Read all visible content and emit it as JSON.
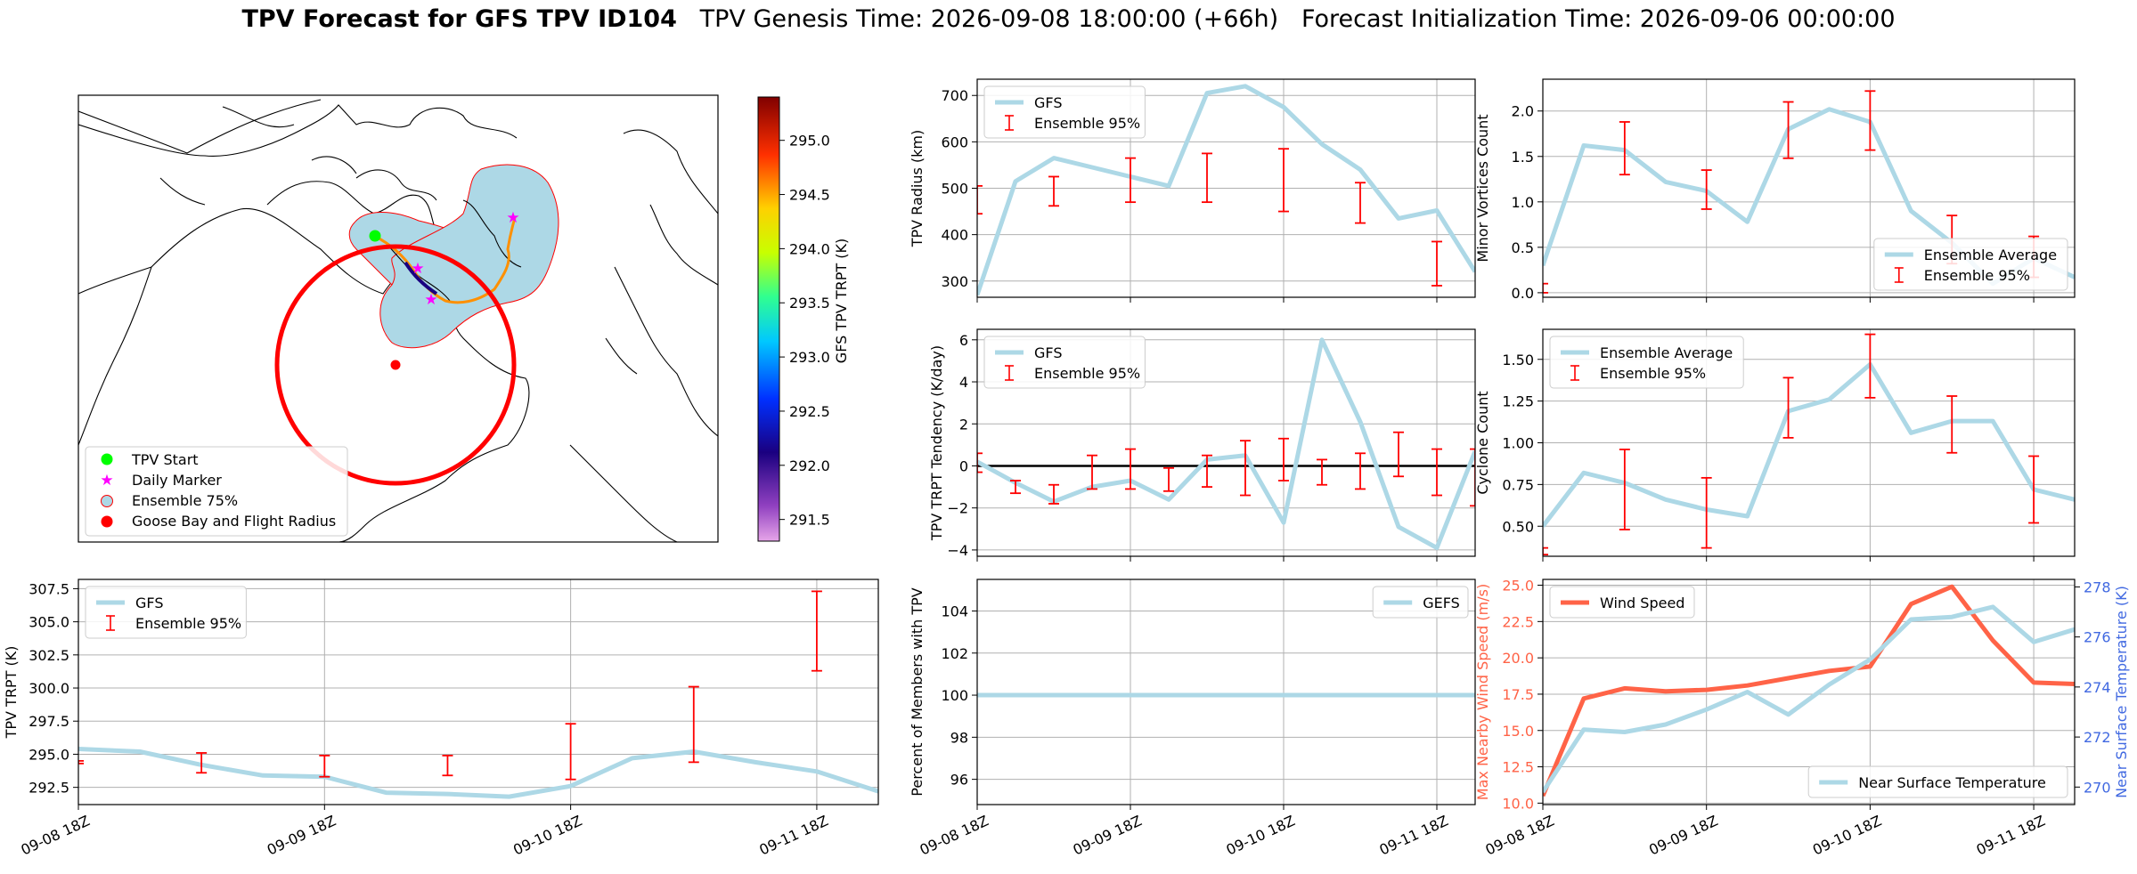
{
  "header": {
    "title_main": "TPV Forecast for GFS TPV ID104",
    "title_genesis": "TPV Genesis Time: 2026-09-08 18:00:00 (+66h)",
    "title_init": "Forecast Initialization Time: 2026-09-06 00:00:00"
  },
  "colors": {
    "gfs_line": "#add8e6",
    "error_bar": "#ff0000",
    "wind_line": "#ff6347",
    "temp_axis": "#4169e1",
    "map_land_edge": "#000000",
    "ensemble_area": "#add8e6",
    "goose_bay": "#ff0000",
    "tpv_start": "#00ff00",
    "daily_marker": "#ff00ff"
  },
  "map_panel": {
    "legend": [
      "TPV Start",
      "Daily Marker",
      "Ensemble 75%",
      "Goose Bay and Flight Radius"
    ],
    "colorbar": {
      "label": "GFS TPV TRPT (K)",
      "ticks": [
        "295.0",
        "294.5",
        "294.0",
        "293.5",
        "293.0",
        "292.5",
        "292.0",
        "291.5"
      ],
      "range": [
        291.3,
        295.4
      ]
    }
  },
  "x_ticks": [
    "09-08 18Z",
    "09-09 18Z",
    "09-10 18Z",
    "09-11 18Z"
  ],
  "chart_data": [
    {
      "id": "radius",
      "type": "line",
      "ylabel": "TPV Radius (km)",
      "ylim": [
        265,
        735
      ],
      "yticks": [
        300,
        400,
        500,
        600,
        700
      ],
      "grid": true,
      "legend": [
        "GFS",
        "Ensemble 95%"
      ],
      "legend_loc": "upper left",
      "x_hours": [
        0,
        6,
        12,
        18,
        24,
        30,
        36,
        42,
        48,
        54,
        60,
        66,
        72,
        78
      ],
      "series": [
        {
          "name": "GFS",
          "values": [
            270,
            515,
            565,
            545,
            525,
            505,
            705,
            720,
            675,
            595,
            540,
            435,
            452,
            320
          ]
        }
      ],
      "errorbars": [
        {
          "x": 0,
          "low": 445,
          "high": 505
        },
        {
          "x": 12,
          "low": 462,
          "high": 525
        },
        {
          "x": 24,
          "low": 470,
          "high": 565
        },
        {
          "x": 36,
          "low": 470,
          "high": 575
        },
        {
          "x": 48,
          "low": 450,
          "high": 585
        },
        {
          "x": 60,
          "low": 425,
          "high": 512
        },
        {
          "x": 72,
          "low": 290,
          "high": 385
        }
      ]
    },
    {
      "id": "minor_vortices",
      "type": "line",
      "ylabel": "Minor Vortices Count",
      "ylim": [
        -0.05,
        2.35
      ],
      "yticks": [
        0.0,
        0.5,
        1.0,
        1.5,
        2.0
      ],
      "ytick_labels": [
        "0.0",
        "0.5",
        "1.0",
        "1.5",
        "2.0"
      ],
      "grid": true,
      "legend": [
        "Ensemble Average",
        "Ensemble 95%"
      ],
      "legend_loc": "lower right",
      "x_hours": [
        0,
        6,
        12,
        18,
        24,
        30,
        36,
        42,
        48,
        54,
        60,
        66,
        72,
        78
      ],
      "series": [
        {
          "name": "Ensemble Average",
          "values": [
            0.3,
            1.62,
            1.57,
            1.22,
            1.12,
            0.78,
            1.8,
            2.02,
            1.88,
            0.9,
            0.55,
            0.1,
            0.38,
            0.17
          ]
        }
      ],
      "errorbars": [
        {
          "x": 0,
          "low": 0.0,
          "high": 0.1
        },
        {
          "x": 12,
          "low": 1.3,
          "high": 1.88
        },
        {
          "x": 24,
          "low": 0.92,
          "high": 1.35
        },
        {
          "x": 36,
          "low": 1.48,
          "high": 2.1
        },
        {
          "x": 48,
          "low": 1.57,
          "high": 2.22
        },
        {
          "x": 60,
          "low": 0.32,
          "high": 0.85
        },
        {
          "x": 72,
          "low": 0.17,
          "high": 0.62
        }
      ]
    },
    {
      "id": "tendency",
      "type": "line",
      "ylabel": "TPV TRPT Tendency (K/day)",
      "ylim": [
        -4.3,
        6.5
      ],
      "yticks": [
        -4,
        -2,
        0,
        2,
        4,
        6
      ],
      "ytick_labels": [
        "−4",
        "−2",
        "0",
        "2",
        "4",
        "6"
      ],
      "grid": true,
      "zero_line": true,
      "legend": [
        "GFS",
        "Ensemble 95%"
      ],
      "legend_loc": "upper left",
      "x_hours": [
        0,
        6,
        12,
        18,
        24,
        30,
        36,
        42,
        48,
        54,
        60,
        66,
        72,
        78
      ],
      "series": [
        {
          "name": "GFS",
          "values": [
            0.2,
            -0.8,
            -1.7,
            -1.0,
            -0.7,
            -1.6,
            0.3,
            0.5,
            -2.7,
            6.0,
            2.1,
            -2.9,
            -3.9,
            0.7
          ]
        }
      ],
      "errorbars": [
        {
          "x": 0,
          "low": -0.3,
          "high": 0.6
        },
        {
          "x": 6,
          "low": -1.3,
          "high": -0.7
        },
        {
          "x": 12,
          "low": -1.8,
          "high": -0.9
        },
        {
          "x": 18,
          "low": -1.1,
          "high": 0.5
        },
        {
          "x": 24,
          "low": -1.1,
          "high": 0.8
        },
        {
          "x": 30,
          "low": -1.2,
          "high": -0.1
        },
        {
          "x": 36,
          "low": -1.0,
          "high": 0.5
        },
        {
          "x": 42,
          "low": -1.4,
          "high": 1.2
        },
        {
          "x": 48,
          "low": -0.7,
          "high": 1.3
        },
        {
          "x": 54,
          "low": -0.9,
          "high": 0.3
        },
        {
          "x": 60,
          "low": -1.1,
          "high": 0.6
        },
        {
          "x": 66,
          "low": -0.5,
          "high": 1.6
        },
        {
          "x": 72,
          "low": -1.4,
          "high": 0.8
        },
        {
          "x": 78,
          "low": -1.9,
          "high": 0.8
        }
      ]
    },
    {
      "id": "cyclone",
      "type": "line",
      "ylabel": "Cyclone Count",
      "ylim": [
        0.32,
        1.68
      ],
      "yticks": [
        0.5,
        0.75,
        1.0,
        1.25,
        1.5
      ],
      "ytick_labels": [
        "0.50",
        "0.75",
        "1.00",
        "1.25",
        "1.50"
      ],
      "grid": true,
      "legend": [
        "Ensemble Average",
        "Ensemble 95%"
      ],
      "legend_loc": "upper left",
      "x_hours": [
        0,
        6,
        12,
        18,
        24,
        30,
        36,
        42,
        48,
        54,
        60,
        66,
        72,
        78
      ],
      "series": [
        {
          "name": "Ensemble Average",
          "values": [
            0.5,
            0.82,
            0.76,
            0.66,
            0.6,
            0.56,
            1.19,
            1.26,
            1.47,
            1.06,
            1.13,
            1.13,
            0.72,
            0.66
          ]
        }
      ],
      "errorbars": [
        {
          "x": 0,
          "low": 0.33,
          "high": 0.37
        },
        {
          "x": 12,
          "low": 0.48,
          "high": 0.96
        },
        {
          "x": 24,
          "low": 0.37,
          "high": 0.79
        },
        {
          "x": 36,
          "low": 1.03,
          "high": 1.39
        },
        {
          "x": 48,
          "low": 1.27,
          "high": 1.65
        },
        {
          "x": 60,
          "low": 0.94,
          "high": 1.28
        },
        {
          "x": 72,
          "low": 0.52,
          "high": 0.92
        }
      ]
    },
    {
      "id": "trpt",
      "type": "line",
      "ylabel": "TPV TRPT (K)",
      "ylim": [
        291.2,
        308.2
      ],
      "yticks": [
        292.5,
        295.0,
        297.5,
        300.0,
        302.5,
        305.0,
        307.5
      ],
      "ytick_labels": [
        "292.5",
        "295.0",
        "297.5",
        "300.0",
        "302.5",
        "305.0",
        "307.5"
      ],
      "grid": true,
      "legend": [
        "GFS",
        "Ensemble 95%"
      ],
      "legend_loc": "upper left",
      "x_hours": [
        0,
        6,
        12,
        18,
        24,
        30,
        36,
        42,
        48,
        54,
        60,
        66,
        72,
        78
      ],
      "series": [
        {
          "name": "GFS",
          "values": [
            295.4,
            295.2,
            294.2,
            293.4,
            293.3,
            292.1,
            292.0,
            291.8,
            292.6,
            294.7,
            295.2,
            294.4,
            293.7,
            292.2
          ]
        }
      ],
      "errorbars": [
        {
          "x": 0,
          "low": 294.3,
          "high": 294.5
        },
        {
          "x": 12,
          "low": 293.6,
          "high": 295.1
        },
        {
          "x": 24,
          "low": 293.3,
          "high": 294.9
        },
        {
          "x": 36,
          "low": 293.4,
          "high": 294.9
        },
        {
          "x": 48,
          "low": 293.1,
          "high": 297.3
        },
        {
          "x": 60,
          "low": 294.4,
          "high": 300.1
        },
        {
          "x": 72,
          "low": 301.3,
          "high": 307.3
        }
      ]
    },
    {
      "id": "percent_members",
      "type": "line",
      "ylabel": "Percent of Members with TPV",
      "ylim": [
        94.8,
        105.5
      ],
      "yticks": [
        96,
        98,
        100,
        102,
        104
      ],
      "grid": true,
      "legend": [
        "GEFS"
      ],
      "legend_loc": "upper right",
      "x_hours": [
        0,
        78
      ],
      "series": [
        {
          "name": "GEFS",
          "values": [
            100,
            100
          ]
        }
      ]
    },
    {
      "id": "wind_temp",
      "type": "line",
      "ylabel": "Max Nearby Wind Speed (m/s)",
      "ylabel_right": "Near Surface Temperature (K)",
      "ylim": [
        9.9,
        25.4
      ],
      "yticks": [
        10.0,
        12.5,
        15.0,
        17.5,
        20.0,
        22.5,
        25.0
      ],
      "ytick_labels": [
        "10.0",
        "12.5",
        "15.0",
        "17.5",
        "20.0",
        "22.5",
        "25.0"
      ],
      "ylim_right": [
        269.3,
        278.3
      ],
      "yticks_right": [
        270,
        272,
        274,
        276,
        278
      ],
      "grid": true,
      "legend": [
        "Wind Speed"
      ],
      "legend_loc": "upper left",
      "legend_right": [
        "Near Surface Temperature"
      ],
      "legend_right_loc": "lower right",
      "x_hours": [
        0,
        6,
        12,
        18,
        24,
        30,
        36,
        42,
        48,
        54,
        60,
        66,
        72,
        78
      ],
      "series": [
        {
          "name": "Wind Speed",
          "values": [
            10.5,
            17.2,
            17.9,
            17.7,
            17.8,
            18.1,
            18.6,
            19.1,
            19.4,
            23.7,
            24.9,
            21.2,
            18.3,
            18.2
          ]
        },
        {
          "name": "Near Surface Temperature",
          "values": [
            269.8,
            272.3,
            272.2,
            272.5,
            273.1,
            273.8,
            272.9,
            274.1,
            275.1,
            276.7,
            276.8,
            277.2,
            275.8,
            276.3
          ]
        }
      ]
    }
  ]
}
